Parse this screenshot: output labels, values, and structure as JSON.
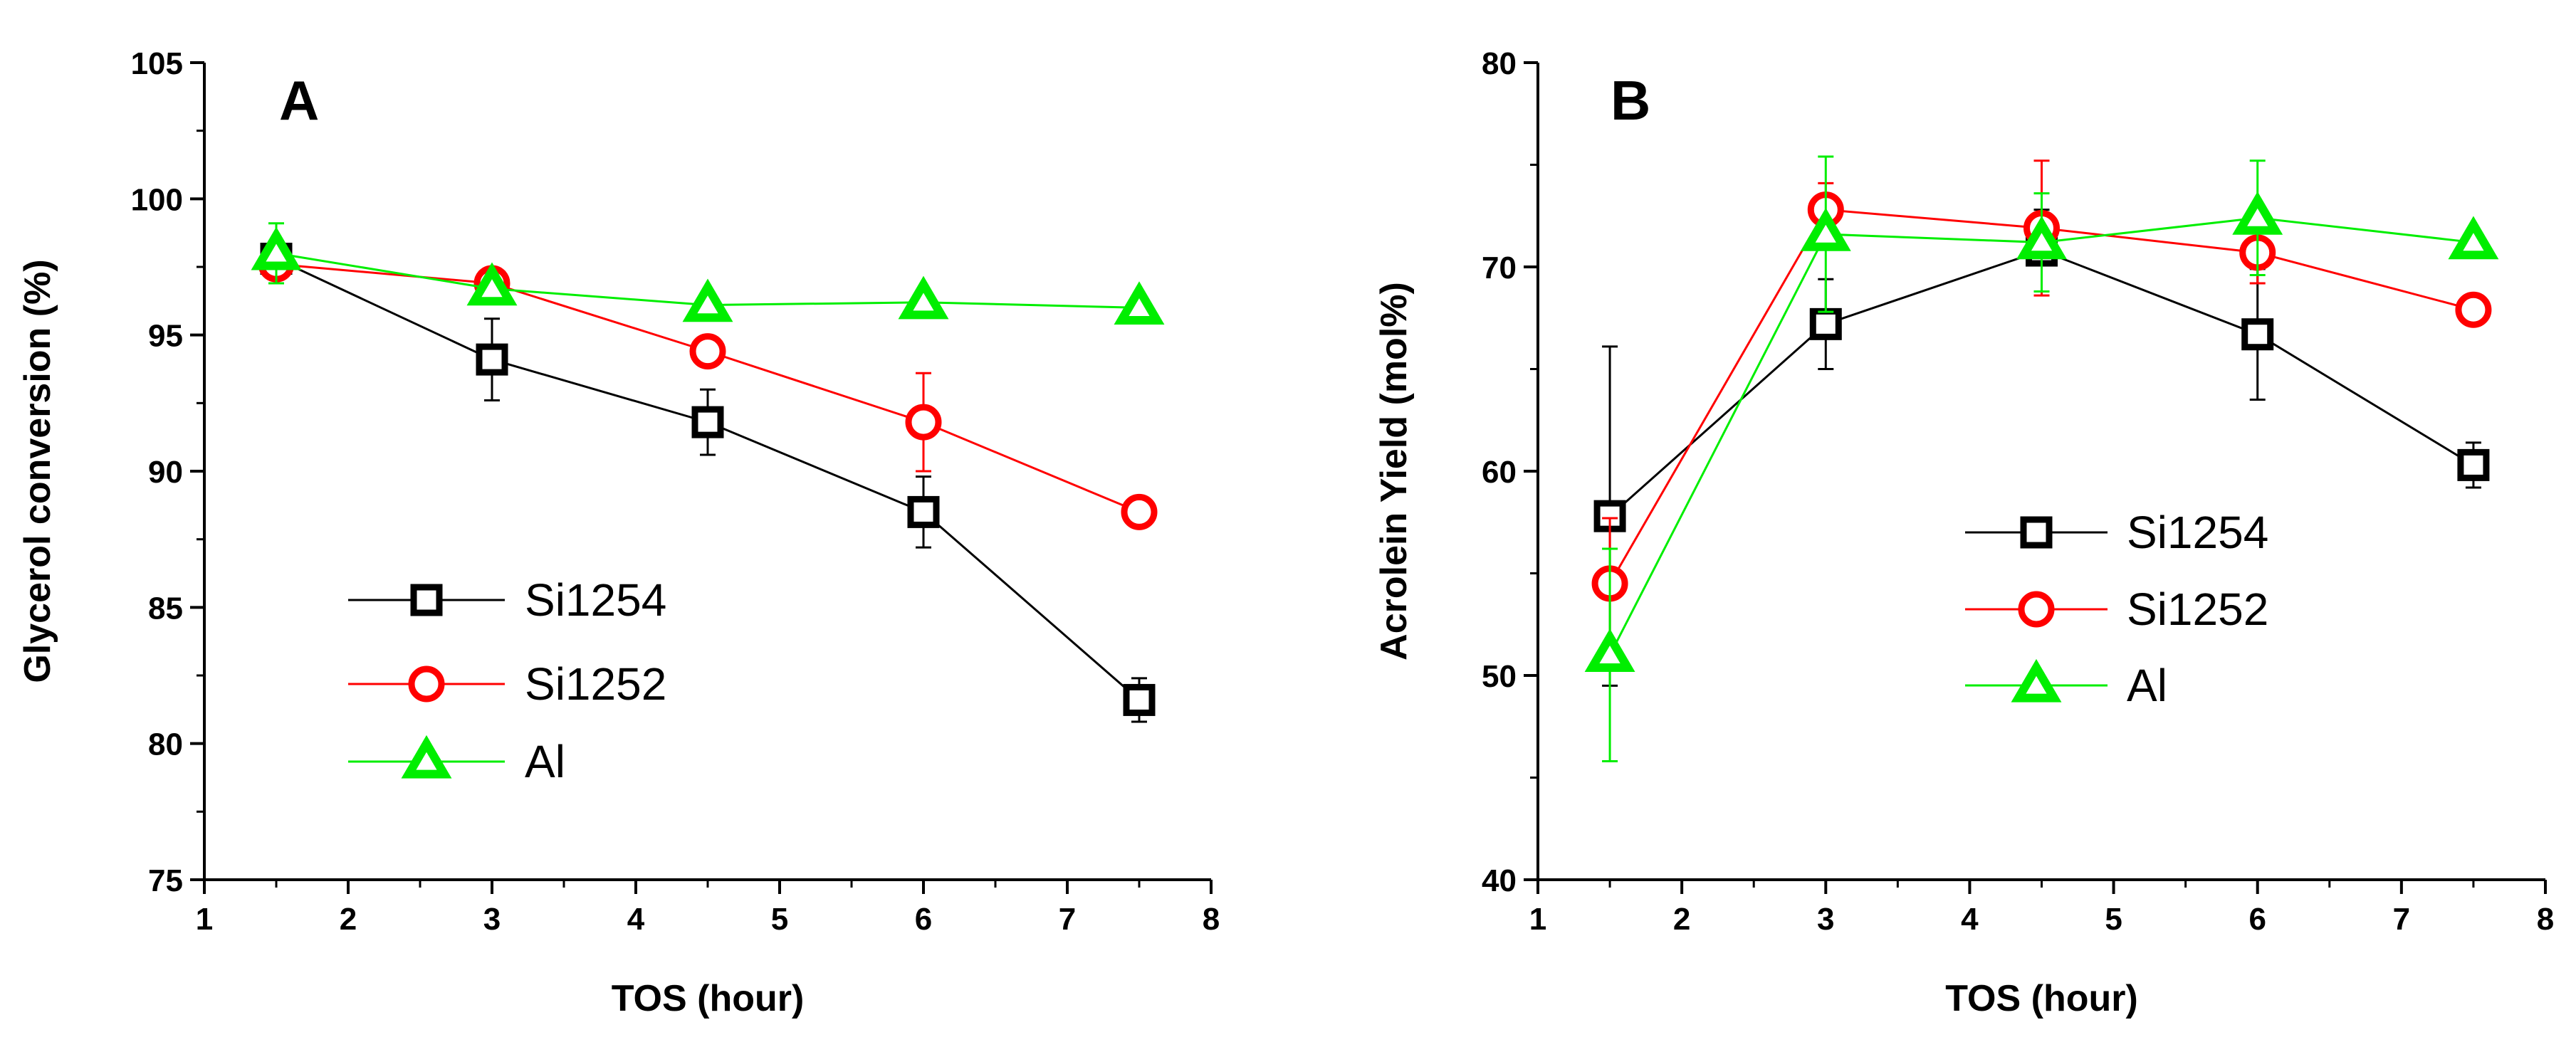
{
  "chart_data": [
    {
      "type": "line",
      "panel_label": "A",
      "xlabel": "TOS (hour)",
      "ylabel": "Glycerol conversion (%)",
      "xlim": [
        1,
        8
      ],
      "ylim": [
        75,
        105
      ],
      "xticks": [
        "1",
        "2",
        "3",
        "4",
        "5",
        "6",
        "7",
        "8"
      ],
      "yticks": [
        "75",
        "80",
        "85",
        "90",
        "95",
        "100",
        "105"
      ],
      "grid": false,
      "legend_position": "bottom-left",
      "x": [
        1.5,
        3,
        4.5,
        6,
        7.5
      ],
      "series": [
        {
          "name": "Si1254",
          "color": "#000000",
          "marker": "square",
          "values": [
            97.8,
            94.1,
            91.8,
            88.5,
            81.6
          ],
          "errors": [
            0.5,
            1.5,
            1.2,
            1.3,
            0.8
          ]
        },
        {
          "name": "Si1252",
          "color": "#ff0000",
          "marker": "circle",
          "values": [
            97.6,
            96.9,
            94.4,
            91.8,
            88.5
          ],
          "errors": [
            0.4,
            0.5,
            0.3,
            1.8,
            0.3
          ]
        },
        {
          "name": "Al",
          "color": "#00ee00",
          "marker": "triangle",
          "values": [
            98.0,
            96.7,
            96.1,
            96.2,
            96.0
          ],
          "errors": [
            1.1,
            0.4,
            0.3,
            0.3,
            0.3
          ]
        }
      ]
    },
    {
      "type": "line",
      "panel_label": "B",
      "xlabel": "TOS (hour)",
      "ylabel": "Acrolein Yield (mol%)",
      "xlim": [
        1,
        8
      ],
      "ylim": [
        40,
        80
      ],
      "xticks": [
        "1",
        "2",
        "3",
        "4",
        "5",
        "6",
        "7",
        "8"
      ],
      "yticks": [
        "40",
        "50",
        "60",
        "70",
        "80"
      ],
      "grid": false,
      "legend_position": "middle-right",
      "x": [
        1.5,
        3,
        4.5,
        6,
        7.5
      ],
      "series": [
        {
          "name": "Si1254",
          "color": "#000000",
          "marker": "square",
          "values": [
            57.8,
            67.2,
            70.8,
            66.7,
            60.3
          ],
          "errors": [
            8.3,
            2.2,
            2.0,
            3.2,
            1.1
          ]
        },
        {
          "name": "Si1252",
          "color": "#ff0000",
          "marker": "circle",
          "values": [
            54.5,
            72.8,
            71.9,
            70.7,
            67.9
          ],
          "errors": [
            3.2,
            1.3,
            3.3,
            1.5,
            0.5
          ]
        },
        {
          "name": "Al",
          "color": "#00ee00",
          "marker": "triangle",
          "values": [
            51.0,
            71.6,
            71.2,
            72.4,
            71.2
          ],
          "errors": [
            5.2,
            3.8,
            2.4,
            2.8,
            0.5
          ]
        }
      ]
    }
  ]
}
